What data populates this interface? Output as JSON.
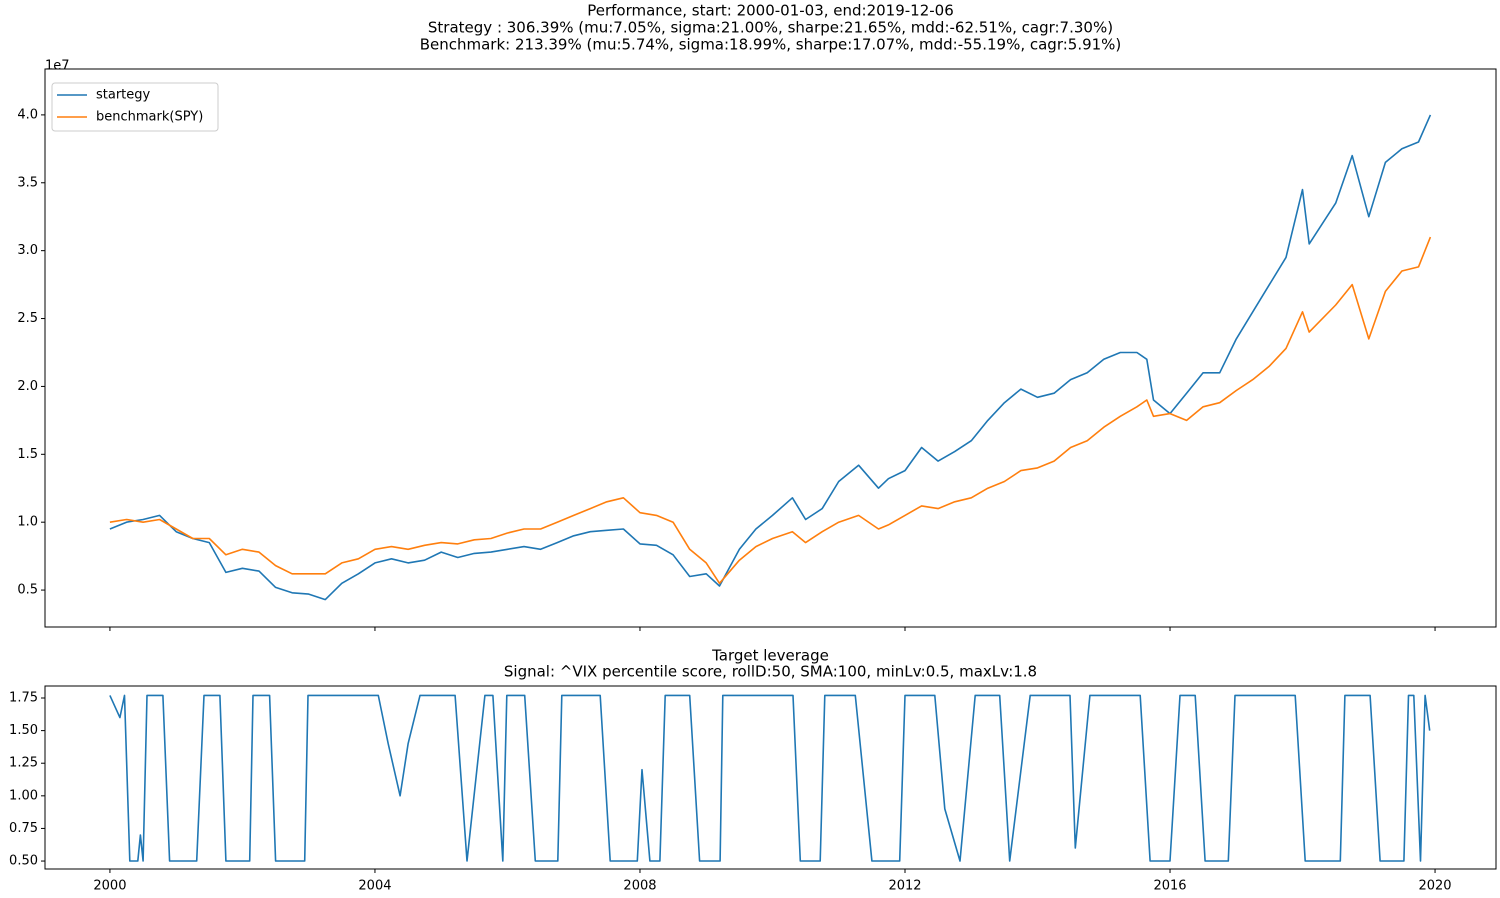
{
  "chart_data": [
    {
      "type": "line",
      "title": [
        "Performance, start: 2000-01-03, end:2019-12-06",
        "Strategy : 306.39% (mu:7.05%, sigma:21.00%, sharpe:21.65%, mdd:-62.51%, cagr:7.30%)",
        "Benchmark: 213.39% (mu:5.74%, sigma:18.99%, sharpe:17.07%, mdd:-55.19%, cagr:5.91%)"
      ],
      "offset_text": "1e7",
      "x": [
        2000.0,
        2000.25,
        2000.5,
        2000.75,
        2001.0,
        2001.25,
        2001.5,
        2001.75,
        2002.0,
        2002.25,
        2002.5,
        2002.75,
        2003.0,
        2003.25,
        2003.5,
        2003.75,
        2004.0,
        2004.25,
        2004.5,
        2004.75,
        2005.0,
        2005.25,
        2005.5,
        2005.75,
        2006.0,
        2006.25,
        2006.5,
        2006.75,
        2007.0,
        2007.25,
        2007.5,
        2007.75,
        2008.0,
        2008.25,
        2008.5,
        2008.75,
        2009.0,
        2009.2,
        2009.5,
        2009.75,
        2010.0,
        2010.3,
        2010.5,
        2010.75,
        2011.0,
        2011.3,
        2011.6,
        2011.75,
        2012.0,
        2012.25,
        2012.5,
        2012.75,
        2013.0,
        2013.25,
        2013.5,
        2013.75,
        2014.0,
        2014.25,
        2014.5,
        2014.75,
        2015.0,
        2015.25,
        2015.5,
        2015.65,
        2015.75,
        2016.0,
        2016.25,
        2016.5,
        2016.75,
        2017.0,
        2017.25,
        2017.5,
        2017.75,
        2018.0,
        2018.1,
        2018.5,
        2018.75,
        2019.0,
        2019.25,
        2019.5,
        2019.75,
        2019.93
      ],
      "series": [
        {
          "name": "startegy",
          "color": "#1f77b4",
          "values": [
            0.95,
            1.0,
            1.02,
            1.05,
            0.93,
            0.88,
            0.85,
            0.63,
            0.66,
            0.64,
            0.52,
            0.48,
            0.47,
            0.43,
            0.55,
            0.62,
            0.7,
            0.73,
            0.7,
            0.72,
            0.78,
            0.74,
            0.77,
            0.78,
            0.8,
            0.82,
            0.8,
            0.85,
            0.9,
            0.93,
            0.94,
            0.95,
            0.84,
            0.83,
            0.76,
            0.6,
            0.62,
            0.53,
            0.8,
            0.95,
            1.05,
            1.18,
            1.02,
            1.1,
            1.3,
            1.42,
            1.25,
            1.32,
            1.38,
            1.55,
            1.45,
            1.52,
            1.6,
            1.75,
            1.88,
            1.98,
            1.92,
            1.95,
            2.05,
            2.1,
            2.2,
            2.25,
            2.25,
            2.2,
            1.9,
            1.8,
            1.95,
            2.1,
            2.1,
            2.35,
            2.55,
            2.75,
            2.95,
            3.45,
            3.05,
            3.35,
            3.7,
            3.25,
            3.65,
            3.75,
            3.8,
            4.0
          ]
        },
        {
          "name": "benchmark(SPY)",
          "color": "#ff7f0e",
          "values": [
            1.0,
            1.02,
            1.0,
            1.02,
            0.95,
            0.88,
            0.88,
            0.76,
            0.8,
            0.78,
            0.68,
            0.62,
            0.62,
            0.62,
            0.7,
            0.73,
            0.8,
            0.82,
            0.8,
            0.83,
            0.85,
            0.84,
            0.87,
            0.88,
            0.92,
            0.95,
            0.95,
            1.0,
            1.05,
            1.1,
            1.15,
            1.18,
            1.07,
            1.05,
            1.0,
            0.8,
            0.7,
            0.55,
            0.72,
            0.82,
            0.88,
            0.93,
            0.85,
            0.93,
            1.0,
            1.05,
            0.95,
            0.98,
            1.05,
            1.12,
            1.1,
            1.15,
            1.18,
            1.25,
            1.3,
            1.38,
            1.4,
            1.45,
            1.55,
            1.6,
            1.7,
            1.78,
            1.85,
            1.9,
            1.78,
            1.8,
            1.75,
            1.85,
            1.88,
            1.97,
            2.05,
            2.15,
            2.28,
            2.55,
            2.4,
            2.6,
            2.75,
            2.35,
            2.7,
            2.85,
            2.88,
            3.1
          ]
        }
      ],
      "xlim": [
        1999.02,
        2020.92
      ],
      "xticks": [
        2000,
        2004,
        2008,
        2012,
        2016,
        2020
      ],
      "show_xticklabels": false,
      "ylim": [
        0.228,
        4.338
      ],
      "yticks": [
        0.5,
        {
          "value": 1.0,
          "label": "1.0"
        },
        1.5,
        {
          "value": 2.0,
          "label": "2.0"
        },
        2.5,
        {
          "value": 3.0,
          "label": "3.0"
        },
        3.5,
        {
          "value": 4.0,
          "label": "4.0"
        }
      ],
      "legend": "upper left"
    },
    {
      "type": "line",
      "title": [
        "Target leverage",
        "Signal: ^VIX percentile score, rollD:50, SMA:100, minLv:0.5, maxLv:1.8"
      ],
      "x": [
        2000.0,
        2000.15,
        2000.22,
        2000.3,
        2000.42,
        2000.46,
        2000.5,
        2000.56,
        2000.8,
        2000.9,
        2001.31,
        2001.42,
        2001.66,
        2001.75,
        2002.11,
        2002.16,
        2002.41,
        2002.5,
        2002.94,
        2002.99,
        2004.05,
        2004.2,
        2004.38,
        2004.5,
        2004.68,
        2005.21,
        2005.39,
        2005.66,
        2005.78,
        2005.93,
        2005.99,
        2006.26,
        2006.42,
        2006.76,
        2006.82,
        2007.4,
        2007.55,
        2007.96,
        2008.03,
        2008.15,
        2008.3,
        2008.38,
        2008.75,
        2008.9,
        2009.21,
        2009.25,
        2010.31,
        2010.42,
        2010.72,
        2010.79,
        2011.25,
        2011.5,
        2011.92,
        2012.0,
        2012.45,
        2012.6,
        2012.83,
        2013.06,
        2013.43,
        2013.58,
        2013.89,
        2014.49,
        2014.57,
        2014.79,
        2015.55,
        2015.7,
        2015.85,
        2016.0,
        2016.15,
        2016.38,
        2016.53,
        2016.88,
        2016.98,
        2017.89,
        2018.04,
        2018.57,
        2018.64,
        2019.02,
        2019.17,
        2019.53,
        2019.6,
        2019.68,
        2019.78,
        2019.85,
        2019.92
      ],
      "series": [
        {
          "name": "leverage",
          "color": "#1f77b4",
          "values": [
            1.77,
            1.6,
            1.77,
            0.5,
            0.5,
            0.7,
            0.5,
            1.77,
            1.77,
            0.5,
            0.5,
            1.77,
            1.77,
            0.5,
            0.5,
            1.77,
            1.77,
            0.5,
            0.5,
            1.77,
            1.77,
            1.4,
            1.0,
            1.4,
            1.77,
            1.77,
            0.5,
            1.77,
            1.77,
            0.5,
            1.77,
            1.77,
            0.5,
            0.5,
            1.77,
            1.77,
            0.5,
            0.5,
            1.2,
            0.5,
            0.5,
            1.77,
            1.77,
            0.5,
            0.5,
            1.77,
            1.77,
            0.5,
            0.5,
            1.77,
            1.77,
            0.5,
            0.5,
            1.77,
            1.77,
            0.9,
            0.5,
            1.77,
            1.77,
            0.5,
            1.77,
            1.77,
            0.6,
            1.77,
            1.77,
            0.5,
            0.5,
            0.5,
            1.77,
            1.77,
            0.5,
            0.5,
            1.77,
            1.77,
            0.5,
            0.5,
            1.77,
            1.77,
            0.5,
            0.5,
            1.77,
            1.77,
            0.5,
            1.77,
            1.5
          ]
        }
      ],
      "xlim": [
        1999.02,
        2020.92
      ],
      "xticks": [
        2000,
        2004,
        2008,
        2012,
        2016,
        2020
      ],
      "show_xticklabels": true,
      "ylim": [
        0.439,
        1.842
      ],
      "yticks": [
        {
          "value": 0.5,
          "label": "0.50"
        },
        {
          "value": 0.75,
          "label": "0.75"
        },
        {
          "value": 1.0,
          "label": "1.00"
        },
        {
          "value": 1.25,
          "label": "1.25"
        },
        {
          "value": 1.5,
          "label": "1.50"
        },
        {
          "value": 1.75,
          "label": "1.75"
        }
      ]
    }
  ]
}
